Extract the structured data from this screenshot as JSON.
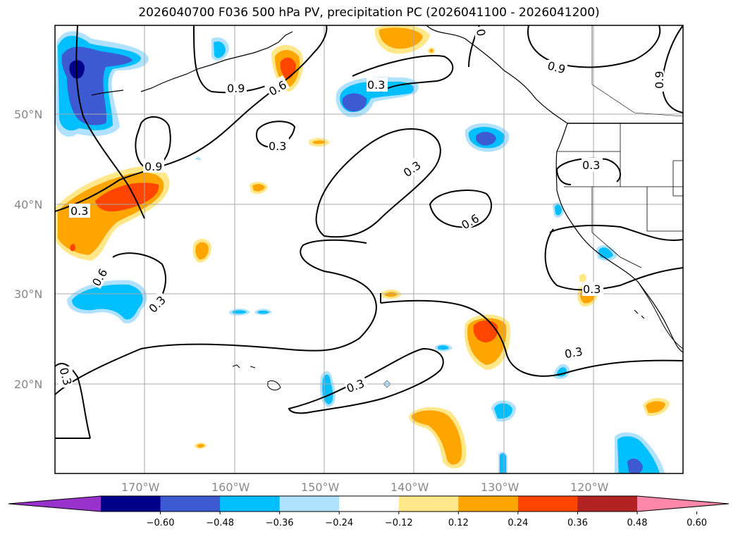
{
  "title": "2026040700 F036 500 hPa PV, precipitation PC (2026041100 - 2026041200)",
  "latitude_labels": [
    "50°N",
    "40°N",
    "30°N",
    "20°N"
  ],
  "longitude_labels": [
    "170°W",
    "160°W",
    "150°W",
    "140°W",
    "130°W",
    "120°W"
  ],
  "contour_labels": [
    "0.9",
    "0.6",
    "0.3",
    "0.9",
    "0.3",
    "0.3",
    "0.6",
    "0.3",
    "0.6",
    "0.3",
    "0.3",
    "0.9",
    "0.3",
    "0.3",
    "0.3",
    "0.9",
    "0.6",
    "0.3",
    "0.3",
    "0"
  ],
  "colorbar": {
    "ticks": [
      "−0.60",
      "−0.48",
      "−0.36",
      "−0.24",
      "−0.12",
      "0.12",
      "0.24",
      "0.36",
      "0.48",
      "0.60"
    ],
    "colors": [
      "#9932cc",
      "#00008b",
      "#3c5ad2",
      "#00bfff",
      "#b0e2ff",
      "#ffffff",
      "#ffe78a",
      "#ffa500",
      "#ff4500",
      "#b22222",
      "#ff88aa"
    ]
  },
  "shading_colors": {
    "dark_blue": "#00008b",
    "royal_blue": "#3c5ad2",
    "sky_blue": "#00bfff",
    "light_blue": "#b0e2ff",
    "light_yellow": "#ffe78a",
    "orange": "#ffa500",
    "red_orange": "#ff4500"
  }
}
